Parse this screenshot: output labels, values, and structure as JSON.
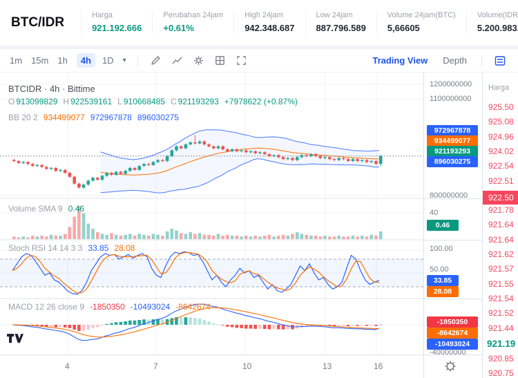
{
  "colors": {
    "accent": "#1e53e5",
    "green": "#089981",
    "red": "#f23645",
    "orange": "#ff6d00",
    "blue": "#2962ff",
    "candle_up": "#26a69a",
    "candle_down": "#ef5350",
    "book_red": "#f6465d"
  },
  "header": {
    "pair": "BTC/IDR",
    "stats": [
      {
        "label": "Harga",
        "value": "921.192.666",
        "color": "green"
      },
      {
        "label": "Perubahan 24jam",
        "value": "+0.61%",
        "color": "green"
      },
      {
        "label": "High 24jam",
        "value": "942.348.687",
        "color": "dark"
      },
      {
        "label": "Low 24jam",
        "value": "887.796.589",
        "color": "dark"
      },
      {
        "label": "Volume 24jam(BTC)",
        "value": "5,66605",
        "color": "dark"
      },
      {
        "label": "Volume(IDR)",
        "value": "5.200.983.076",
        "color": "dark"
      }
    ]
  },
  "toolbar": {
    "timeframes": [
      "1m",
      "15m",
      "1h",
      "4h",
      "1D"
    ],
    "active_timeframe": "4h",
    "right_tabs": [
      {
        "label": "Trading View",
        "active": true
      },
      {
        "label": "Depth",
        "active": false
      }
    ]
  },
  "legends": {
    "main": {
      "title": "BTCIDR · 4h · Bittime",
      "o_label": "O",
      "o": "913099829",
      "h_label": "H",
      "h": "922539161",
      "l_label": "L",
      "l": "910668485",
      "c_label": "C",
      "c": "921193293",
      "change": "+7978622 (+0.87%)"
    },
    "bb": {
      "name": "BB 20 2",
      "basis": "934499077",
      "upper": "972967878",
      "lower": "896030275"
    },
    "volume": {
      "name": "Volume SMA 9",
      "value": "0.46"
    },
    "stoch": {
      "name": "Stoch RSI 14 14 3 3",
      "k": "33.85",
      "d": "28.08"
    },
    "macd": {
      "name": "MACD 12 26 close 9",
      "hist": "-1850350",
      "macd": "-10493024",
      "signal": "-8642674"
    }
  },
  "axis": {
    "main_labels": [
      "1200000000",
      "1100000000",
      "800000000"
    ],
    "main_badges": [
      {
        "text": "972967878",
        "color": "#2962ff"
      },
      {
        "text": "934499077",
        "color": "#ff6d00"
      },
      {
        "text": "921193293",
        "color": "#089981"
      },
      {
        "text": "896030275",
        "color": "#2962ff"
      }
    ],
    "volume_label": "40",
    "volume_badge": {
      "text": "0.46",
      "color": "#089981"
    },
    "stoch_labels": [
      "100.00",
      "50.00"
    ],
    "stoch_badges": [
      {
        "text": "33.85",
        "color": "#2962ff"
      },
      {
        "text": "28.08",
        "color": "#ff6d00"
      }
    ],
    "macd_badges": [
      {
        "text": "-1850350",
        "color": "#f23645"
      },
      {
        "text": "-8642674",
        "color": "#ff6d00"
      },
      {
        "text": "-10493024",
        "color": "#2962ff"
      }
    ],
    "macd_label": "-40000000"
  },
  "order_book": {
    "column_header": "Harga",
    "rows": [
      {
        "price": "925.50",
        "type": "ask"
      },
      {
        "price": "925.08",
        "type": "ask"
      },
      {
        "price": "924.96",
        "type": "ask"
      },
      {
        "price": "924.02",
        "type": "ask"
      },
      {
        "price": "922.54",
        "type": "ask"
      },
      {
        "price": "922.51",
        "type": "ask"
      },
      {
        "price": "922.50",
        "type": "ask-highlight"
      },
      {
        "price": "921.78",
        "type": "ask"
      },
      {
        "price": "921.64",
        "type": "ask"
      },
      {
        "price": "921.64",
        "type": "ask"
      },
      {
        "price": "921.62",
        "type": "ask"
      },
      {
        "price": "921.57",
        "type": "ask"
      },
      {
        "price": "921.55",
        "type": "ask"
      },
      {
        "price": "921.54",
        "type": "ask"
      },
      {
        "price": "921.52",
        "type": "ask"
      },
      {
        "price": "921.44",
        "type": "ask"
      }
    ],
    "last_price": "921.19",
    "bids": [
      {
        "price": "920.85"
      },
      {
        "price": "920.75"
      }
    ]
  },
  "chart_data": {
    "type": "candlestick+indicators",
    "pair": "BTCIDR",
    "interval": "4h",
    "exchange": "Bittime",
    "x_labels": [
      "4",
      "7",
      "10",
      "13",
      "16"
    ],
    "price_scale_labels": [
      "1200000000",
      "1100000000",
      "800000000"
    ],
    "current_price_millions": 921.19,
    "candles_close_millions": [
      916,
      914,
      915,
      913,
      911,
      912,
      910,
      908,
      909,
      906,
      907,
      904,
      900,
      893,
      889,
      892,
      896,
      899,
      897,
      901,
      904,
      902,
      905,
      903,
      906,
      909,
      907,
      911,
      913,
      912,
      915,
      917,
      916,
      921,
      927,
      931,
      929,
      933,
      935,
      934,
      936,
      933,
      931,
      929,
      931,
      928,
      926,
      928,
      926,
      927,
      925,
      926,
      924,
      925,
      923,
      921,
      922,
      920,
      918,
      919,
      917,
      920,
      922,
      921,
      923,
      921,
      919,
      920,
      918,
      917,
      919,
      918,
      916,
      918,
      916,
      917,
      915,
      916,
      913.1,
      921.2
    ],
    "wick_overrides": {
      "14": {
        "low": 887.8
      },
      "39": {
        "high": 942.3
      },
      "79": {
        "low": 910.7,
        "high": 922.5
      }
    },
    "volumes": [
      3,
      2,
      3,
      2,
      4,
      3,
      4,
      3,
      5,
      4,
      4,
      6,
      14,
      26,
      38,
      30,
      18,
      12,
      8,
      6,
      5,
      7,
      5,
      4,
      5,
      6,
      4,
      6,
      5,
      4,
      6,
      5,
      4,
      9,
      12,
      10,
      7,
      6,
      8,
      6,
      7,
      5,
      5,
      4,
      6,
      4,
      5,
      4,
      4,
      3,
      4,
      3,
      4,
      3,
      4,
      5,
      3,
      4,
      5,
      4,
      6,
      8,
      6,
      5,
      4,
      4,
      3,
      4,
      3,
      3,
      4,
      3,
      3,
      4,
      3,
      4,
      3,
      5,
      4,
      9
    ],
    "stoch_k": [
      55,
      70,
      85,
      92,
      88,
      75,
      60,
      45,
      50,
      35,
      30,
      20,
      10,
      5,
      4,
      12,
      30,
      55,
      70,
      85,
      92,
      88,
      90,
      80,
      85,
      90,
      82,
      88,
      92,
      85,
      60,
      45,
      40,
      65,
      85,
      95,
      92,
      96,
      94,
      88,
      90,
      75,
      55,
      35,
      45,
      30,
      20,
      35,
      45,
      60,
      50,
      55,
      40,
      45,
      30,
      15,
      25,
      12,
      8,
      15,
      25,
      45,
      65,
      55,
      70,
      50,
      35,
      40,
      25,
      15,
      20,
      30,
      60,
      88,
      80,
      55,
      35,
      25,
      30,
      33.85
    ],
    "stoch_bands": {
      "upper": 80,
      "lower": 20,
      "mid_label": "50.00",
      "top_label": "100.00"
    },
    "indicator_settings": {
      "bb": "20 2",
      "volume_sma": "9",
      "stoch": "14 14 3 3",
      "macd": "12 26 close 9"
    }
  }
}
